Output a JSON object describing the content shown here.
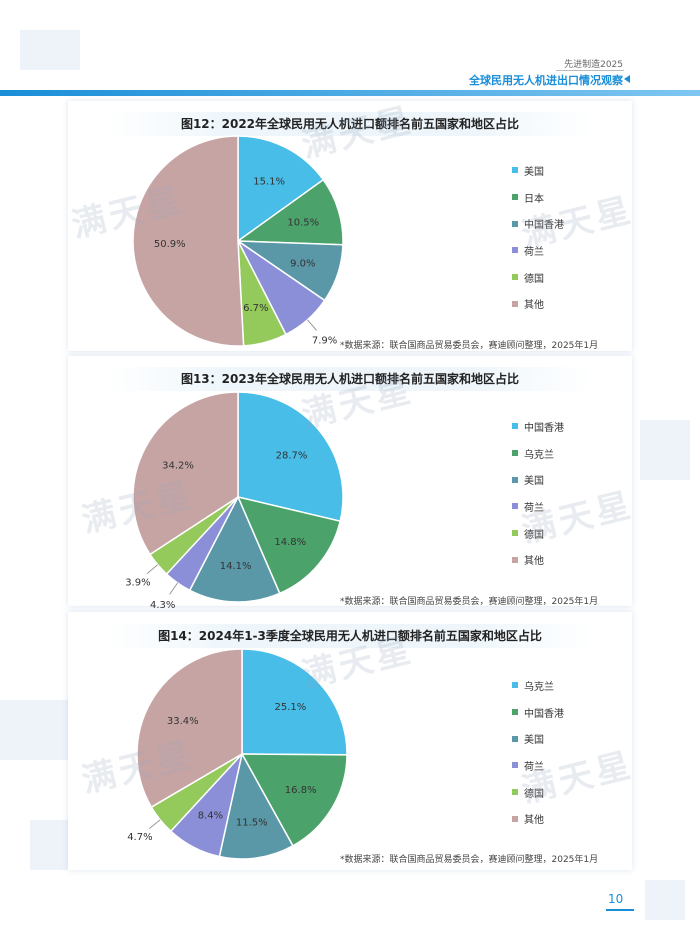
{
  "header": {
    "top": "先进制造2025",
    "title": "全球民用无人机进出口情况观察"
  },
  "page_number": "10",
  "source_note": "*数据来源：联合国商品贸易委员会，赛迪顾问整理，2025年1月",
  "watermark": "满天星",
  "colors": {
    "accent": "#1a8ed8"
  },
  "chart_data": [
    {
      "type": "pie",
      "title": "图12：2022年全球民用无人机进口额排名前五国家和地区占比",
      "categories": [
        "美国",
        "日本",
        "中国香港",
        "荷兰",
        "德国",
        "其他"
      ],
      "values": [
        15.1,
        10.5,
        9.0,
        7.9,
        6.7,
        50.9
      ],
      "labels": [
        "15.1%",
        "10.5%",
        "9.0%",
        "7.9%",
        "6.7%",
        "50.9%"
      ],
      "colors": [
        "#47bde8",
        "#4ba36b",
        "#5a98a8",
        "#8b8fd8",
        "#94c95c",
        "#c7a4a4"
      ],
      "legend_position": "right"
    },
    {
      "type": "pie",
      "title": "图13：2023年全球民用无人机进口额排名前五国家和地区占比",
      "categories": [
        "中国香港",
        "乌克兰",
        "美国",
        "荷兰",
        "德国",
        "其他"
      ],
      "values": [
        28.7,
        14.8,
        14.1,
        4.3,
        3.9,
        34.2
      ],
      "labels": [
        "28.7%",
        "14.8%",
        "14.1%",
        "4.3%",
        "3.9%",
        "34.2%"
      ],
      "colors": [
        "#47bde8",
        "#4ba36b",
        "#5a98a8",
        "#8b8fd8",
        "#94c95c",
        "#c7a4a4"
      ],
      "legend_position": "right"
    },
    {
      "type": "pie",
      "title": "图14：2024年1-3季度全球民用无人机进口额排名前五国家和地区占比",
      "categories": [
        "乌克兰",
        "中国香港",
        "美国",
        "荷兰",
        "德国",
        "其他"
      ],
      "values": [
        25.1,
        16.8,
        11.5,
        8.4,
        4.7,
        33.4
      ],
      "labels": [
        "25.1%",
        "16.8%",
        "11.5%",
        "8.4%",
        "4.7%",
        "33.4%"
      ],
      "colors": [
        "#47bde8",
        "#4ba36b",
        "#5a98a8",
        "#8b8fd8",
        "#94c95c",
        "#c7a4a4"
      ],
      "legend_position": "right"
    }
  ]
}
